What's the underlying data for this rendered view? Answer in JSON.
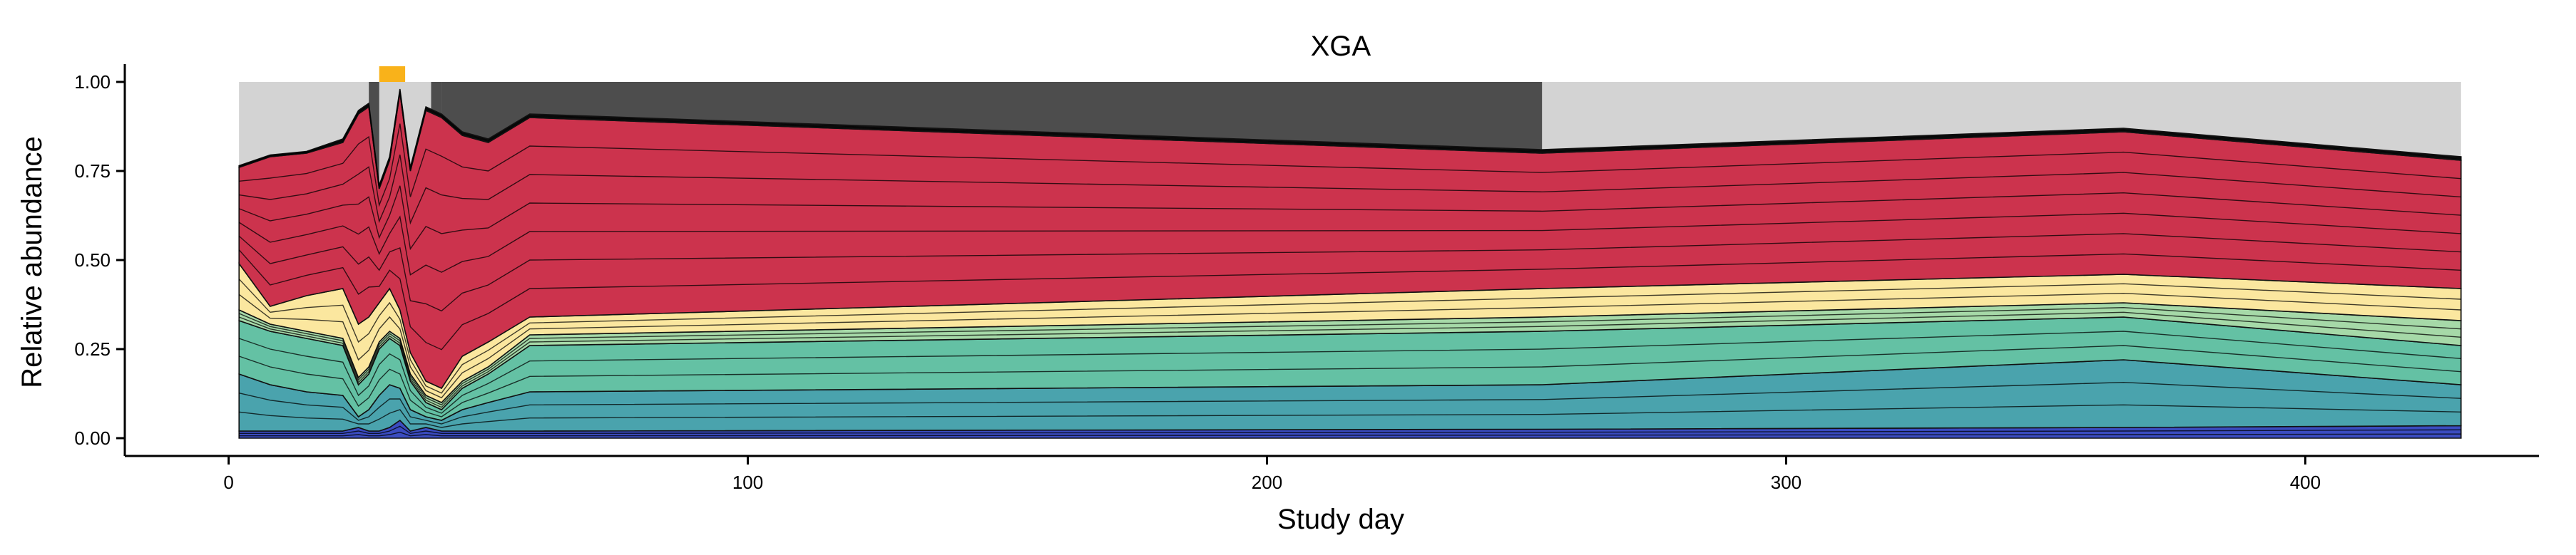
{
  "chart_data": {
    "type": "area",
    "title": "XGA",
    "xlabel": "Study day",
    "ylabel": "Relative abundance",
    "xlim": [
      -20,
      445
    ],
    "ylim": [
      -0.05,
      1.05
    ],
    "x_ticks": [
      0,
      100,
      200,
      300,
      400
    ],
    "x_tick_labels": [
      "0",
      "100",
      "200",
      "300",
      "400"
    ],
    "y_ticks": [
      0,
      0.25,
      0.5,
      0.75,
      1.0
    ],
    "y_tick_labels": [
      "0.00",
      "0.25",
      "0.50",
      "0.75",
      "1.00"
    ],
    "legend": "none",
    "x": [
      2,
      8,
      15,
      22,
      25,
      27,
      29,
      31,
      33,
      35,
      38,
      41,
      45,
      50,
      58,
      253,
      365,
      430
    ],
    "stacked_groups": [
      {
        "color": "#3b4cc0",
        "top": [
          0.02,
          0.02,
          0.02,
          0.02,
          0.03,
          0.02,
          0.02,
          0.03,
          0.05,
          0.02,
          0.03,
          0.02,
          0.02,
          0.02,
          0.02,
          0.025,
          0.03,
          0.035
        ]
      },
      {
        "color": "#4aa3ad",
        "top": [
          0.18,
          0.15,
          0.13,
          0.12,
          0.06,
          0.08,
          0.12,
          0.15,
          0.14,
          0.08,
          0.06,
          0.05,
          0.08,
          0.1,
          0.13,
          0.15,
          0.22,
          0.15
        ]
      },
      {
        "color": "#64c1a4",
        "top": [
          0.33,
          0.3,
          0.28,
          0.26,
          0.15,
          0.18,
          0.25,
          0.28,
          0.26,
          0.16,
          0.1,
          0.08,
          0.14,
          0.18,
          0.26,
          0.3,
          0.34,
          0.26
        ]
      },
      {
        "color": "#a6d9a8",
        "top": [
          0.36,
          0.32,
          0.3,
          0.28,
          0.17,
          0.2,
          0.27,
          0.3,
          0.28,
          0.18,
          0.12,
          0.1,
          0.16,
          0.2,
          0.29,
          0.34,
          0.38,
          0.33
        ]
      },
      {
        "color": "#fbe79f",
        "top": [
          0.49,
          0.37,
          0.4,
          0.42,
          0.32,
          0.34,
          0.38,
          0.42,
          0.36,
          0.24,
          0.16,
          0.14,
          0.23,
          0.27,
          0.34,
          0.42,
          0.46,
          0.42
        ]
      },
      {
        "color": "#cc334d",
        "top": [
          0.76,
          0.79,
          0.8,
          0.83,
          0.91,
          0.93,
          0.7,
          0.78,
          0.97,
          0.75,
          0.92,
          0.9,
          0.85,
          0.83,
          0.9,
          0.8,
          0.86,
          0.78
        ]
      },
      {
        "color": "#1a1a1a",
        "top": [
          0.765,
          0.795,
          0.805,
          0.84,
          0.92,
          0.94,
          0.71,
          0.79,
          0.98,
          0.76,
          0.93,
          0.91,
          0.86,
          0.84,
          0.91,
          0.81,
          0.87,
          0.79
        ]
      }
    ],
    "background_bands": [
      {
        "x_start": 2,
        "x_end": 27,
        "color": "#d3d3d3"
      },
      {
        "x_start": 27,
        "x_end": 41,
        "color": "#4d4d4d"
      },
      {
        "x_start": 29,
        "x_end": 39,
        "color": "#d3d3d3"
      },
      {
        "x_start": 41,
        "x_end": 253,
        "color": "#4d4d4d"
      },
      {
        "x_start": 253,
        "x_end": 430,
        "color": "#d3d3d3"
      }
    ],
    "marker": {
      "x_start": 29,
      "x_end": 34,
      "color": "#f9b21a"
    }
  }
}
